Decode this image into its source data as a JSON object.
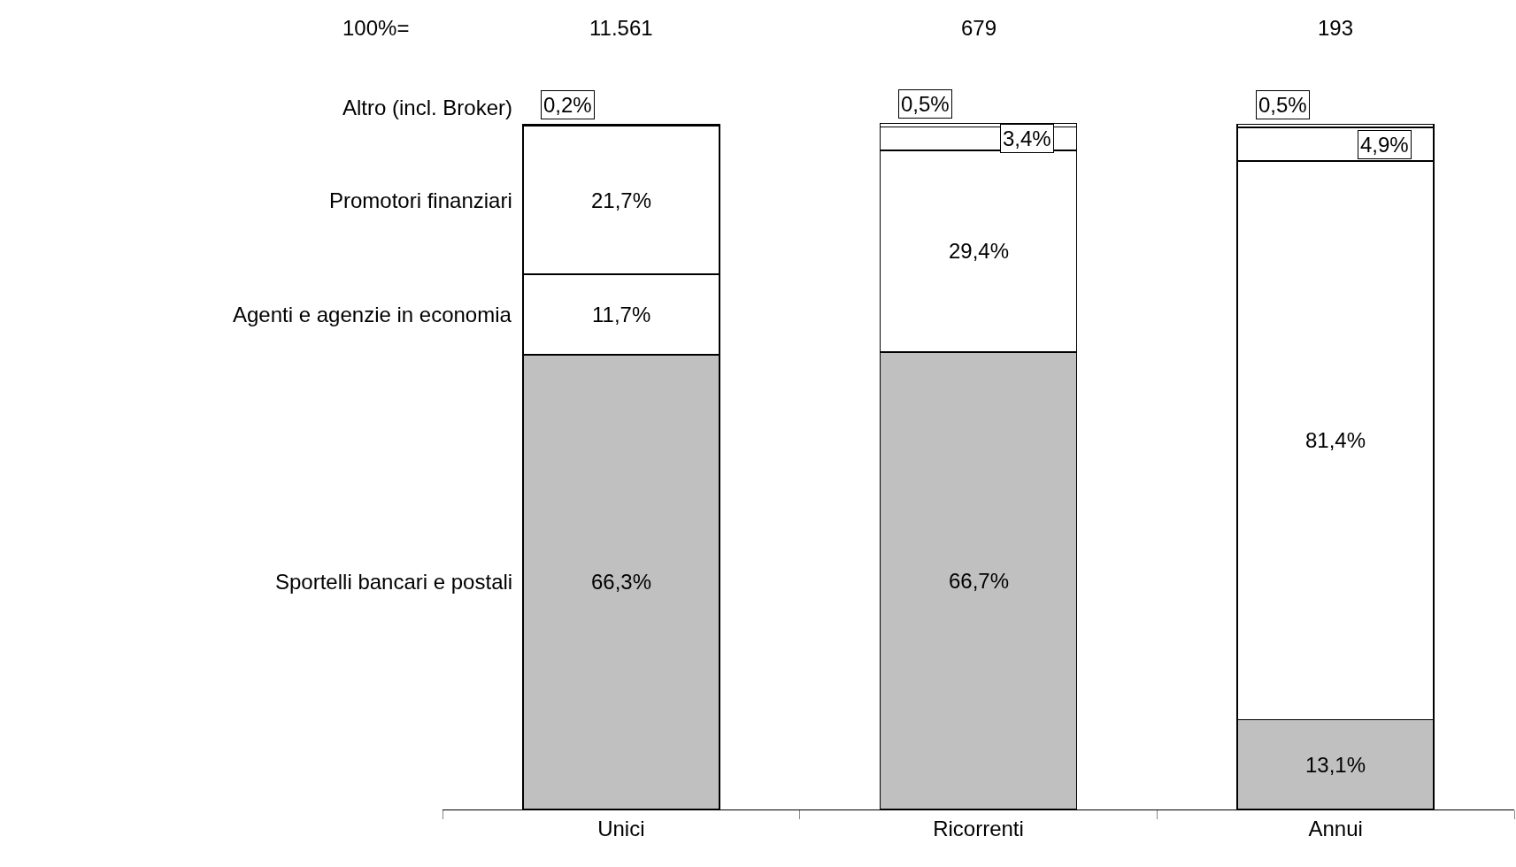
{
  "chart_data": {
    "type": "bar",
    "stacked": true,
    "categories": [
      "Unici",
      "Ricorrenti",
      "Annui"
    ],
    "series": [
      {
        "name": "Sportelli bancari e postali",
        "color": "#c0c0c0",
        "values": [
          66.3,
          66.7,
          13.1
        ],
        "value_labels": [
          "66,3%",
          "66,7%",
          "13,1%"
        ]
      },
      {
        "name": "Agenti e agenzie in economia",
        "color": "#ffffff",
        "values": [
          11.7,
          29.4,
          81.4
        ],
        "value_labels": [
          "11,7%",
          "29,4%",
          "81,4%"
        ]
      },
      {
        "name": "Promotori finanziari",
        "color": "#ffffff",
        "values": [
          21.7,
          3.4,
          4.9
        ],
        "value_labels": [
          "21,7%",
          "3,4%",
          "4,9%"
        ]
      },
      {
        "name": "Altro (incl. Broker)",
        "color": "#ffffff",
        "values": [
          0.2,
          0.5,
          0.5
        ],
        "value_labels": [
          "0,2%",
          "0,5%",
          "0,5%"
        ]
      }
    ],
    "annotations": [
      "100%=",
      "11.561",
      "679",
      "193"
    ]
  }
}
